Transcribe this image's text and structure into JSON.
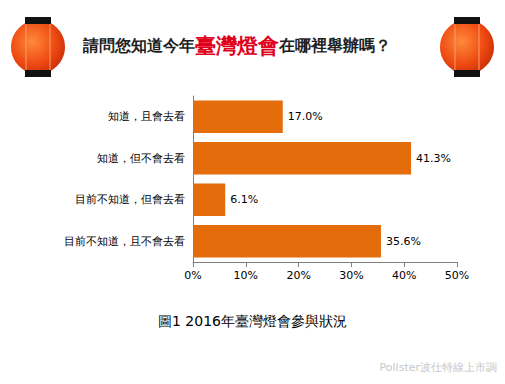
{
  "chart_data": {
    "type": "bar",
    "orientation": "horizontal",
    "title": "請問您知道今年臺灣燈會在哪裡舉辦嗎？",
    "title_highlight": "臺灣燈會",
    "categories": [
      "知道，且會去看",
      "知道，但不會去看",
      "目前不知道，但會去看",
      "目前不知道，且不會去看"
    ],
    "values": [
      17.0,
      41.3,
      6.1,
      35.6
    ],
    "value_labels": [
      "17.0%",
      "41.3%",
      "6.1%",
      "35.6%"
    ],
    "data_labels": true,
    "color": "#e46c0a",
    "xlim": [
      0,
      50
    ],
    "xticks": [
      {
        "value": 0,
        "label": "0%"
      },
      {
        "value": 10,
        "label": "10%"
      },
      {
        "value": 20,
        "label": "20%"
      },
      {
        "value": 30,
        "label": "30%"
      },
      {
        "value": 40,
        "label": "40%"
      },
      {
        "value": 50,
        "label": "50%"
      }
    ],
    "grid": false,
    "annotations": [
      "圖1 2016年臺灣燈會參與狀況",
      "Pollster波仕特線上市調"
    ]
  }
}
